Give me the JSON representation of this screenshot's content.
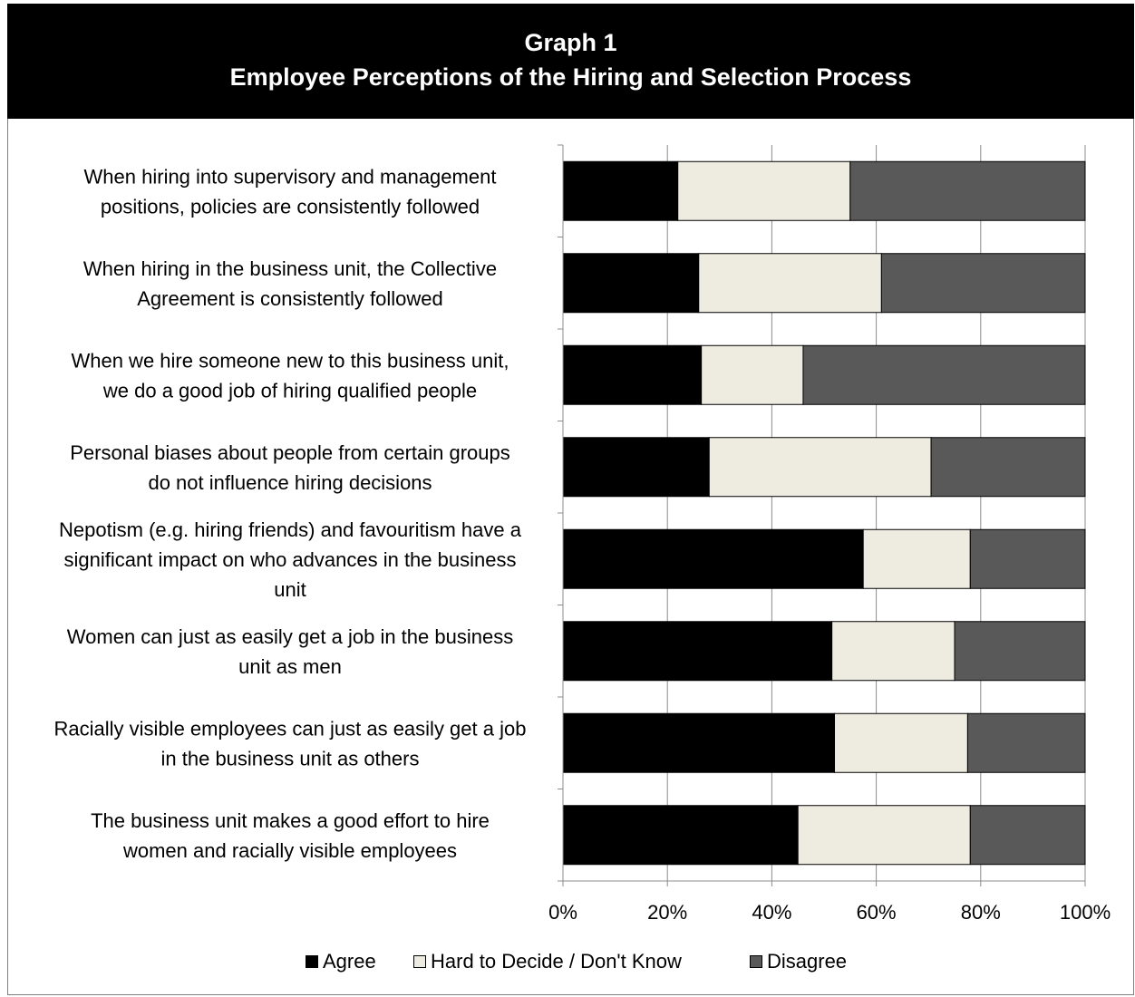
{
  "header": {
    "line1": "Graph 1",
    "line2": "Employee Perceptions of the Hiring and Selection Process"
  },
  "colors": {
    "agree": "#000000",
    "hard_to_decide": "#eeebe0",
    "disagree": "#595959",
    "grid": "#8c8c8c"
  },
  "chart_data": {
    "type": "bar",
    "orientation": "horizontal",
    "stacked": "percent",
    "title": "Employee Perceptions of the Hiring and Selection Process",
    "xlim": [
      0,
      100
    ],
    "x_ticks": [
      "0%",
      "20%",
      "40%",
      "60%",
      "80%",
      "100%"
    ],
    "grid": true,
    "legend_position": "bottom",
    "categories": [
      [
        "When hiring into supervisory and management",
        "positions, policies are consistently followed"
      ],
      [
        "When hiring in the business unit, the Collective",
        "Agreement is consistently followed"
      ],
      [
        "When we hire someone new to this business unit,",
        "we do a good job of hiring qualified people"
      ],
      [
        "Personal biases about people from certain groups",
        "do not influence hiring decisions"
      ],
      [
        "Nepotism (e.g. hiring friends) and favouritism have a",
        "significant impact on who advances in the business",
        "unit"
      ],
      [
        "Women can just as easily get a job in the business",
        "unit as men"
      ],
      [
        "Racially visible employees can just as easily get a job",
        "in the business unit as others"
      ],
      [
        "The business unit makes a good effort to hire",
        "women and racially visible employees"
      ]
    ],
    "series": [
      {
        "name": "Agree",
        "values": [
          22,
          26,
          26.5,
          28,
          57.5,
          51.5,
          52,
          45
        ]
      },
      {
        "name": "Hard to Decide / Don't Know",
        "values": [
          33,
          35,
          19.5,
          42.5,
          20.5,
          23.5,
          25.5,
          33
        ]
      },
      {
        "name": "Disagree",
        "values": [
          45,
          39,
          54,
          29.5,
          22,
          25,
          22.5,
          22
        ]
      }
    ]
  }
}
